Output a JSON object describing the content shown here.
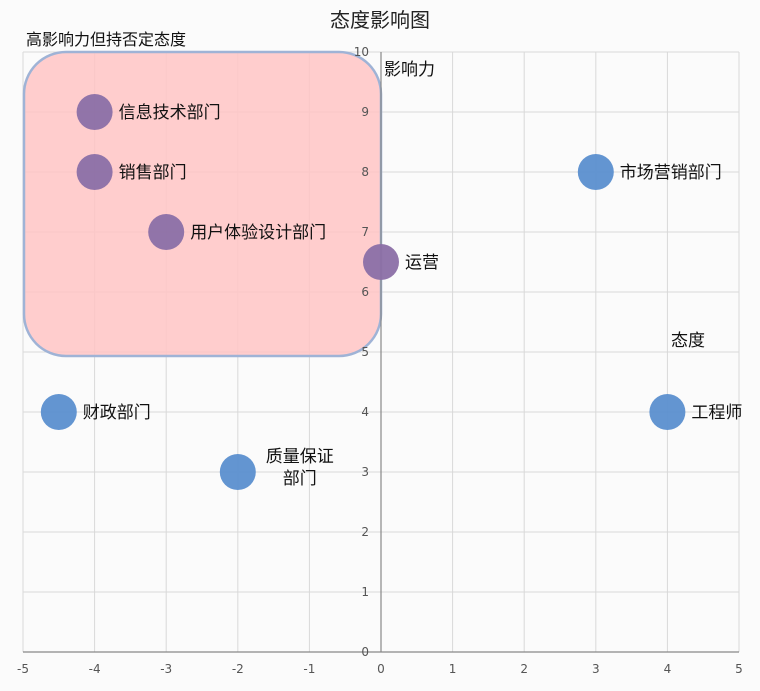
{
  "chart_data": {
    "type": "scatter",
    "title": "态度影响图",
    "xlabel": "态度",
    "ylabel": "影响力",
    "quadrant_label": "高影响力但持否定态度",
    "xlim": [
      -5,
      5
    ],
    "ylim": [
      0,
      10
    ],
    "xticks": [
      -5,
      -4,
      -3,
      -2,
      -1,
      0,
      1,
      2,
      3,
      4,
      5
    ],
    "yticks": [
      0,
      1,
      2,
      3,
      4,
      5,
      6,
      7,
      8,
      9,
      10
    ],
    "grid": true,
    "highlight_region": {
      "x": [
        -5,
        0
      ],
      "y": [
        5,
        10
      ],
      "color": "#ffc4c4",
      "border": "#9fb3d6"
    },
    "points": [
      {
        "label": "信息技术部门",
        "x": -4,
        "y": 9
      },
      {
        "label": "销售部门",
        "x": -4,
        "y": 8
      },
      {
        "label": "用户体验设计部门",
        "x": -3,
        "y": 7
      },
      {
        "label": "运营",
        "x": 0,
        "y": 6.5
      },
      {
        "label": "市场营销部门",
        "x": 3,
        "y": 8
      },
      {
        "label": "工程师",
        "x": 4,
        "y": 4
      },
      {
        "label": "财政部门",
        "x": -4.5,
        "y": 4
      },
      {
        "label": "质量保证部门",
        "label_lines": [
          "质量保证",
          "部门"
        ],
        "x": -2,
        "y": 3
      }
    ],
    "colors": {
      "point": "#5b8fcf",
      "point_in_region": "#8b6fa6",
      "grid": "#d9d9d9",
      "axis": "#888888"
    }
  }
}
